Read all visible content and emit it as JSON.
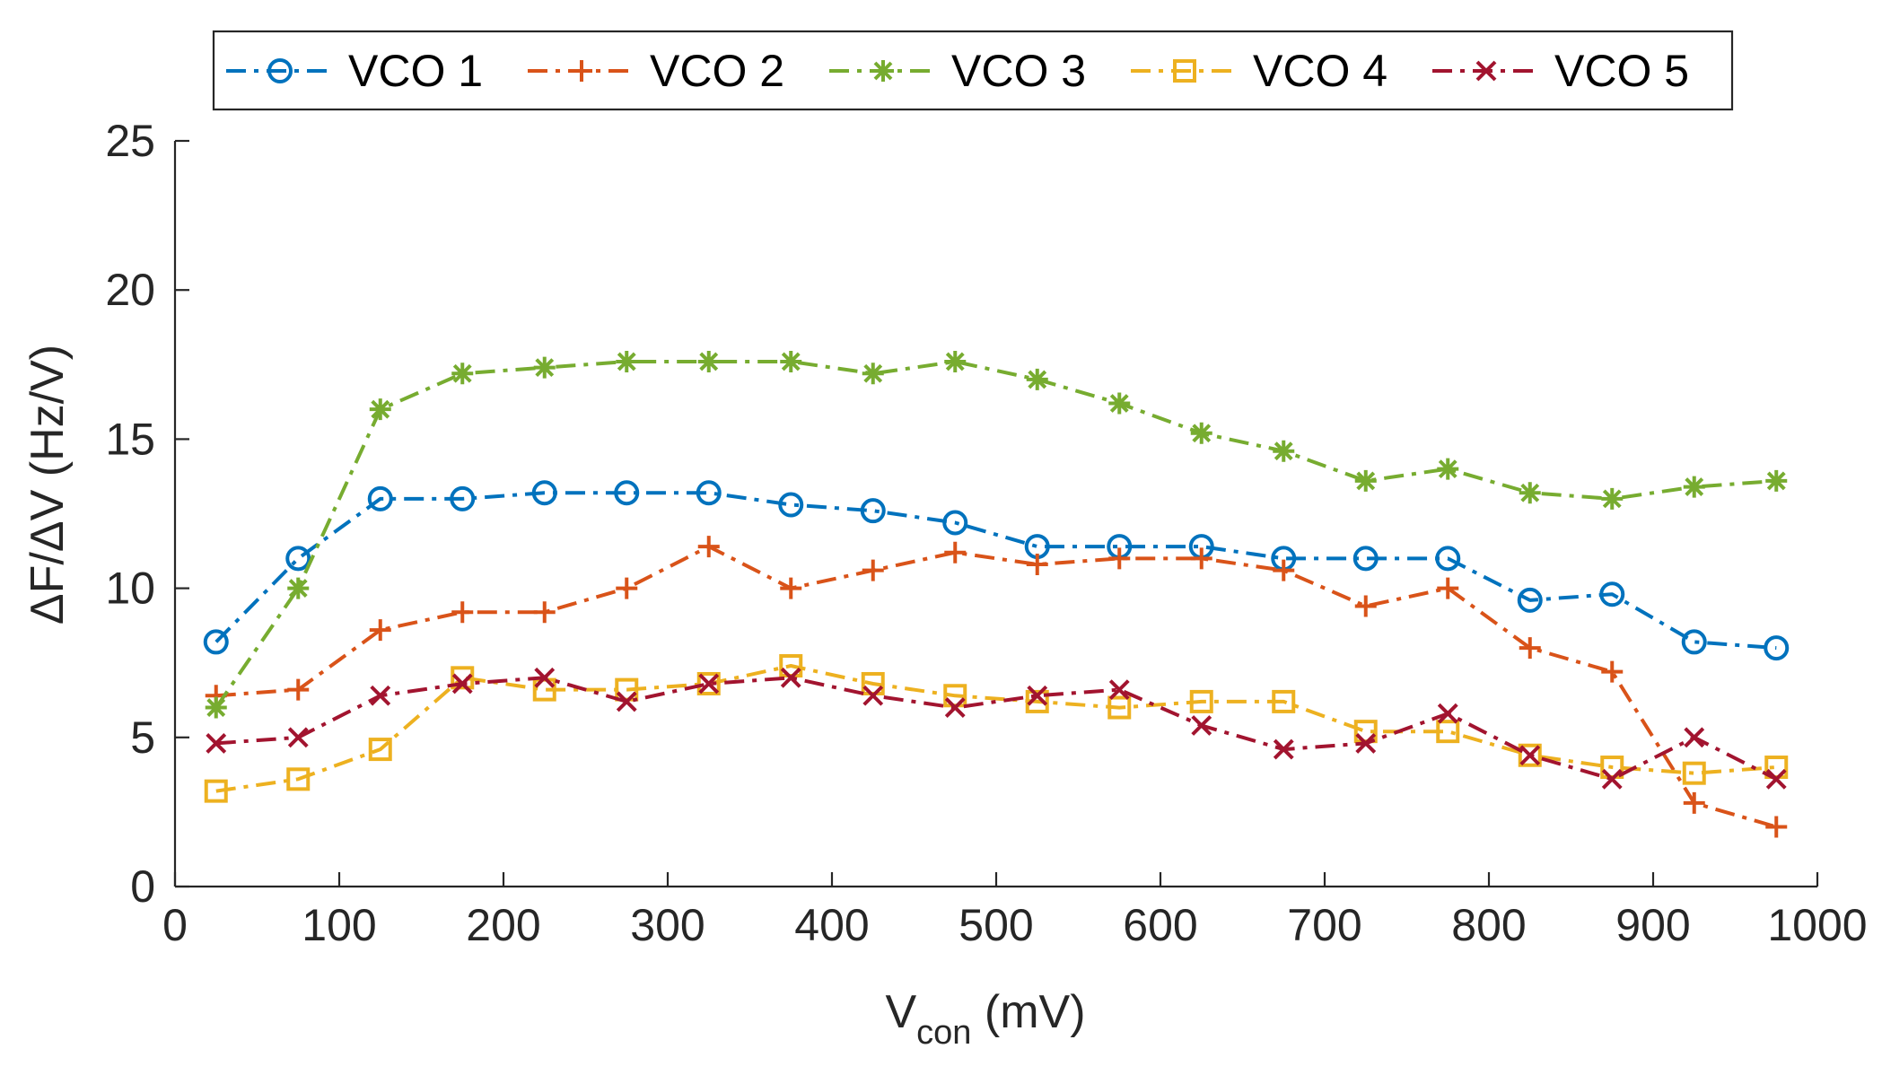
{
  "chart_data": {
    "type": "line",
    "title": "",
    "xlabel": "V",
    "xlabel_sub": "con",
    "xlabel_unit": " (mV)",
    "ylabel": "ΔF/ΔV (Hz/V)",
    "xlim": [
      0,
      1000
    ],
    "ylim": [
      0,
      25
    ],
    "xticks": [
      0,
      100,
      200,
      300,
      400,
      500,
      600,
      700,
      800,
      900,
      1000
    ],
    "yticks": [
      0,
      5,
      10,
      15,
      20,
      25
    ],
    "grid": false,
    "legend_position": "top, horizontal, outside",
    "x": [
      25,
      75,
      125,
      175,
      225,
      275,
      325,
      375,
      425,
      475,
      525,
      575,
      625,
      675,
      725,
      775,
      825,
      875,
      925,
      975
    ],
    "series": [
      {
        "name": "VCO 1",
        "color": "#0072BD",
        "marker": "circle",
        "line_style": "dash-dot",
        "values": [
          8.2,
          11.0,
          13.0,
          13.0,
          13.2,
          13.2,
          13.2,
          12.8,
          12.6,
          12.2,
          11.4,
          11.4,
          11.4,
          11.0,
          11.0,
          11.0,
          9.6,
          9.8,
          8.2,
          8.0
        ]
      },
      {
        "name": "VCO 2",
        "color": "#D95319",
        "marker": "plus",
        "line_style": "dash-dot",
        "values": [
          6.4,
          6.6,
          8.6,
          9.2,
          9.2,
          10.0,
          11.4,
          10.0,
          10.6,
          11.2,
          10.8,
          11.0,
          11.0,
          10.6,
          9.4,
          10.0,
          8.0,
          7.2,
          2.8,
          2.0
        ]
      },
      {
        "name": "VCO 3",
        "color": "#77AC30",
        "marker": "asterisk",
        "line_style": "dash-dot",
        "values": [
          6.0,
          10.0,
          16.0,
          17.2,
          17.4,
          17.6,
          17.6,
          17.6,
          17.2,
          17.6,
          17.0,
          16.2,
          15.2,
          14.6,
          13.6,
          14.0,
          13.2,
          13.0,
          13.4,
          13.6
        ]
      },
      {
        "name": "VCO 4",
        "color": "#EDB120",
        "marker": "square",
        "line_style": "dash-dot",
        "values": [
          3.2,
          3.6,
          4.6,
          7.0,
          6.6,
          6.6,
          6.8,
          7.4,
          6.8,
          6.4,
          6.2,
          6.0,
          6.2,
          6.2,
          5.2,
          5.2,
          4.4,
          4.0,
          3.8,
          4.0
        ]
      },
      {
        "name": "VCO 5",
        "color": "#A2142F",
        "marker": "x",
        "line_style": "dash-dot",
        "values": [
          4.8,
          5.0,
          6.4,
          6.8,
          7.0,
          6.2,
          6.8,
          7.0,
          6.4,
          6.0,
          6.4,
          6.6,
          5.4,
          4.6,
          4.8,
          5.8,
          4.4,
          3.6,
          5.0,
          3.6
        ]
      }
    ]
  }
}
